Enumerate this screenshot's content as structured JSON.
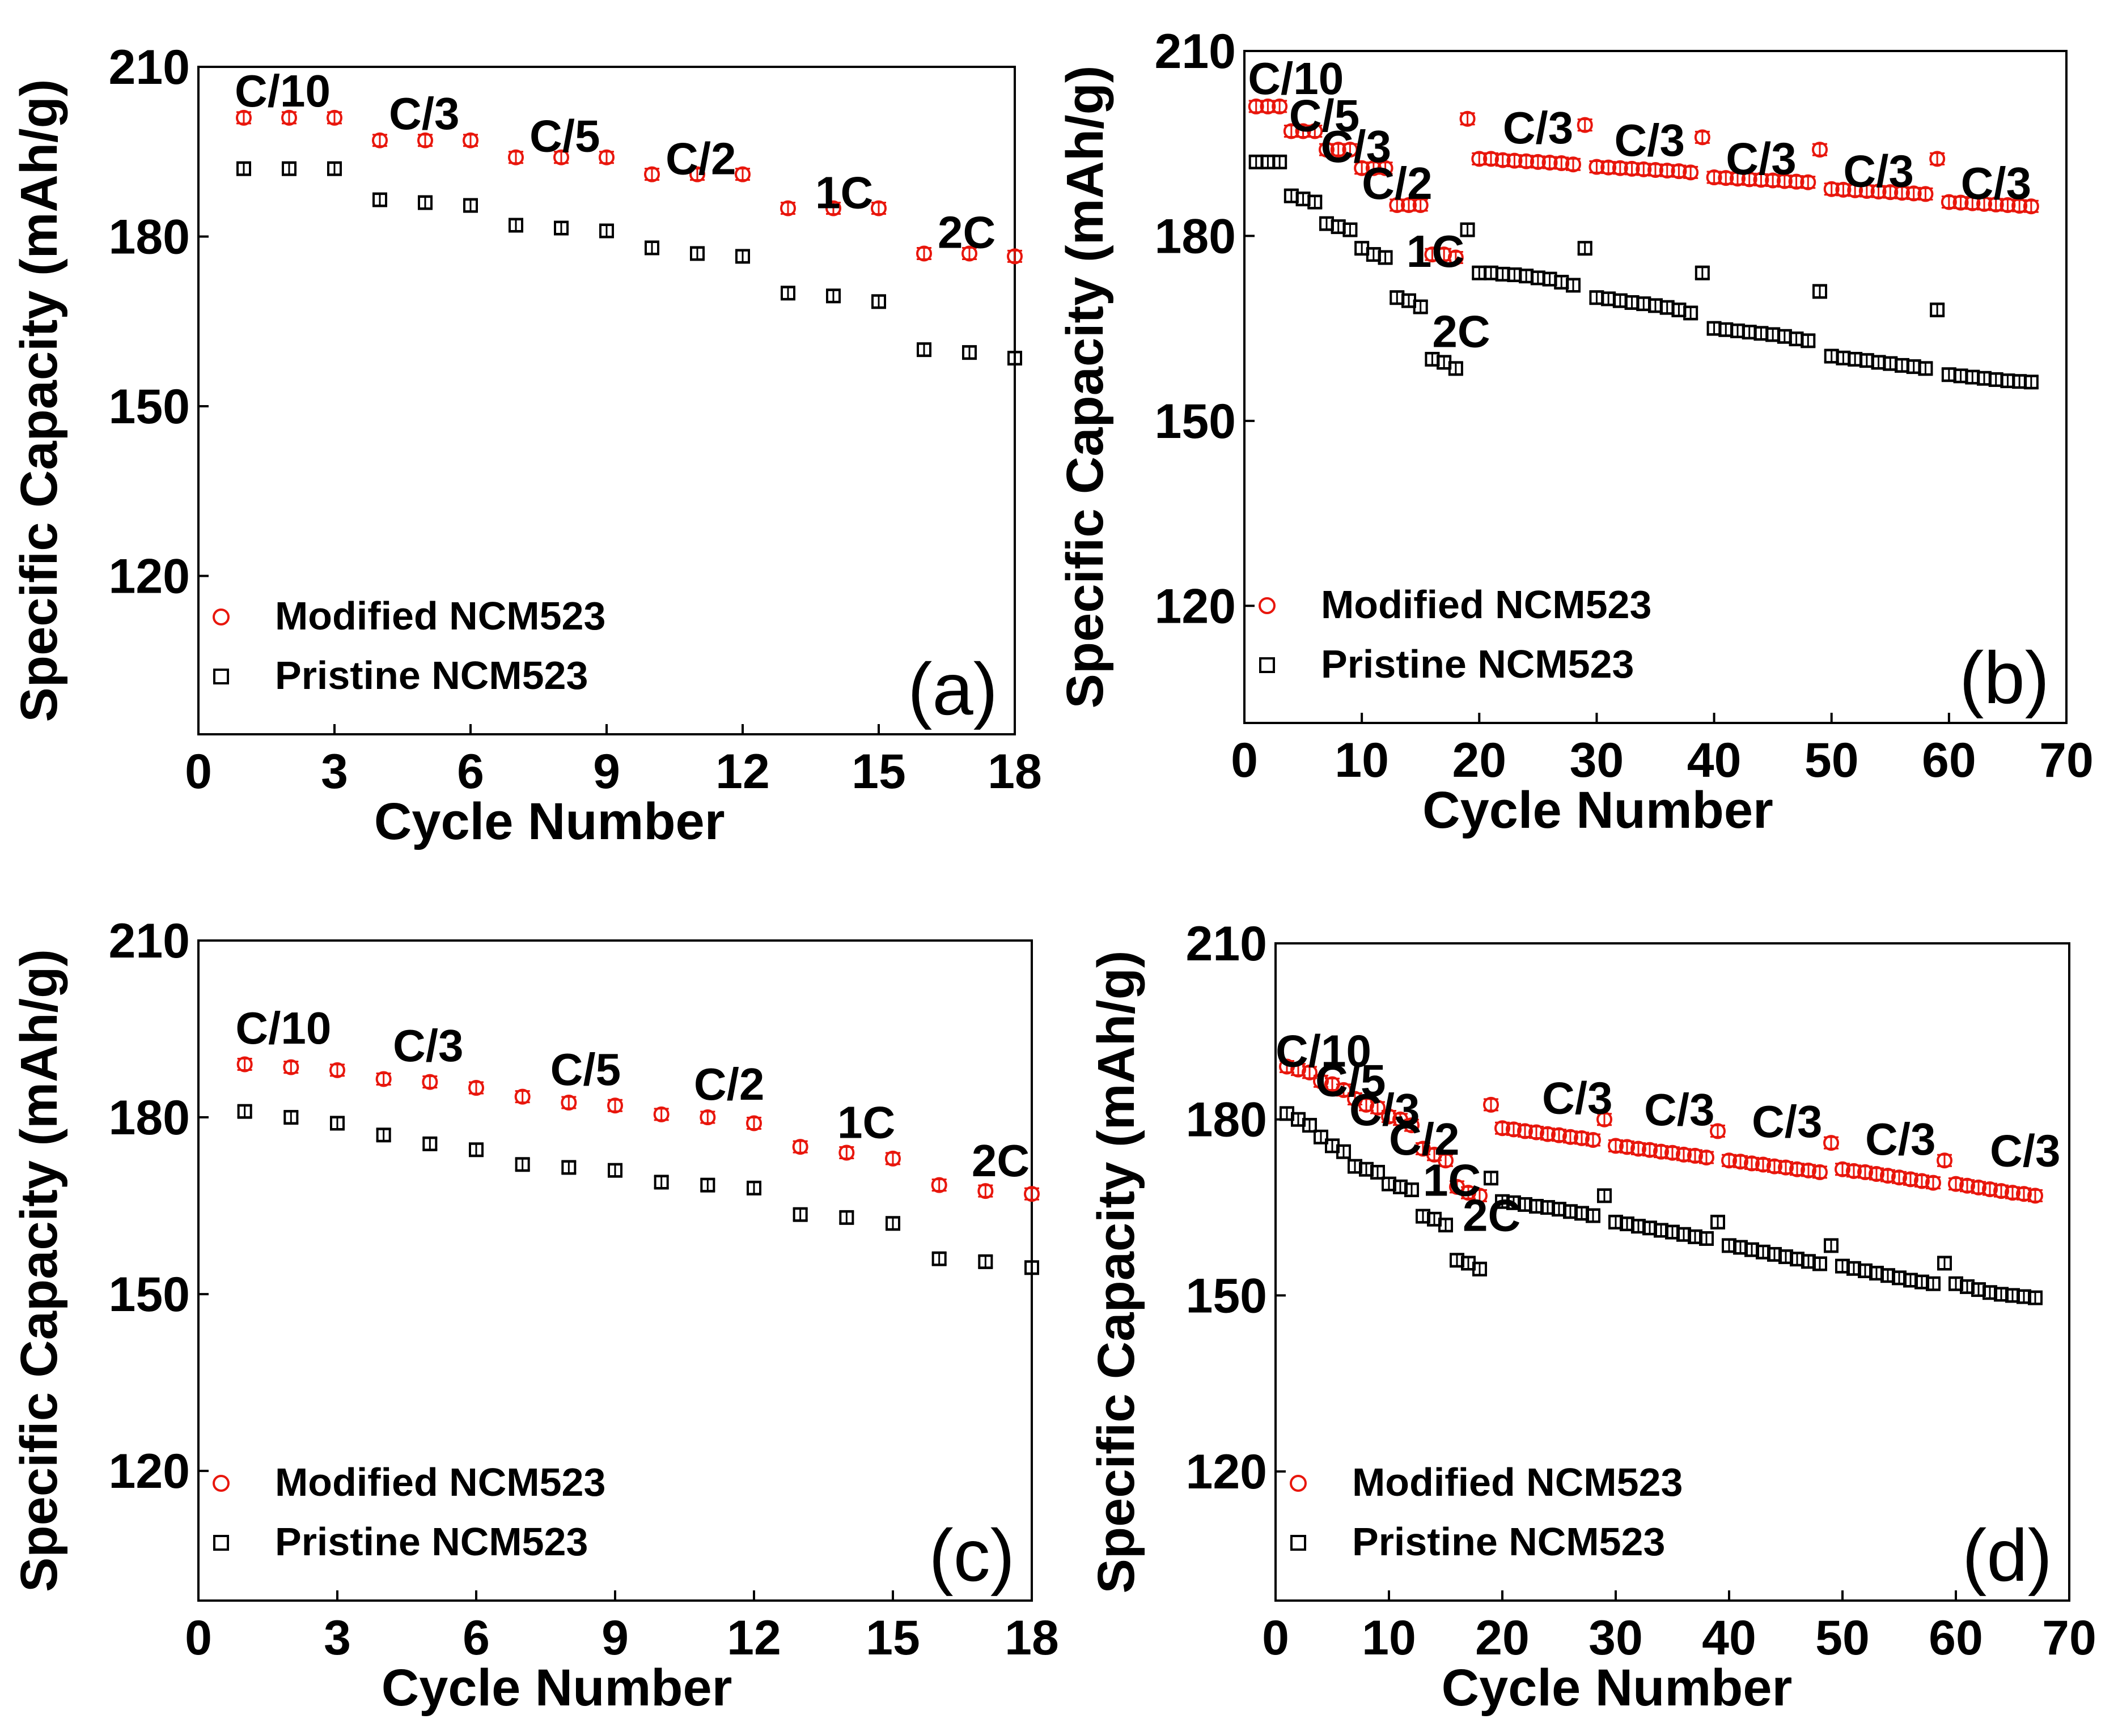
{
  "colors": {
    "modified": "#e8160c",
    "pristine": "#000000",
    "axis": "#000000",
    "background": "#ffffff"
  },
  "chart_data": [
    {
      "panel": "(a)",
      "type": "scatter",
      "xlabel": "Cycle Number",
      "ylabel": "Specific Capacity (mAh/g)",
      "xlim": [
        0,
        18
      ],
      "ylim": [
        92,
        210
      ],
      "xticks": [
        0,
        3,
        6,
        9,
        12,
        15,
        18
      ],
      "yticks": [
        120,
        150,
        180,
        210
      ],
      "legend": {
        "position": "bottom-left",
        "entries": [
          "Modified NCM523",
          "Pristine NCM523"
        ]
      },
      "rate_labels": [
        {
          "text": "C/10",
          "x": 0.8,
          "y": 203
        },
        {
          "text": "C/3",
          "x": 4.2,
          "y": 199
        },
        {
          "text": "C/5",
          "x": 7.3,
          "y": 195
        },
        {
          "text": "C/2",
          "x": 10.3,
          "y": 191
        },
        {
          "text": "1C",
          "x": 13.6,
          "y": 185
        },
        {
          "text": "2C",
          "x": 16.3,
          "y": 178
        }
      ],
      "series": [
        {
          "name": "Modified NCM523",
          "marker": "circle",
          "x": [
            1,
            2,
            3,
            4,
            5,
            6,
            7,
            8,
            9,
            10,
            11,
            12,
            13,
            14,
            15,
            16,
            17,
            18
          ],
          "y": [
            201,
            201,
            201,
            197,
            197,
            197,
            194,
            194,
            194,
            191,
            191,
            191,
            185,
            185,
            185,
            177,
            177,
            176.5
          ]
        },
        {
          "name": "Pristine NCM523",
          "marker": "square",
          "x": [
            1,
            2,
            3,
            4,
            5,
            6,
            7,
            8,
            9,
            10,
            11,
            12,
            13,
            14,
            15,
            16,
            17,
            18
          ],
          "y": [
            192,
            192,
            192,
            186.5,
            186,
            185.5,
            182,
            181.5,
            181,
            178,
            177,
            176.5,
            170,
            169.5,
            168.5,
            160,
            159.5,
            158.5
          ]
        }
      ]
    },
    {
      "panel": "(b)",
      "type": "scatter",
      "xlabel": "Cycle Number",
      "ylabel": "Specific Capacity (mAh/g)",
      "xlim": [
        0,
        70
      ],
      "ylim": [
        101,
        210
      ],
      "xticks": [
        0,
        10,
        20,
        30,
        40,
        50,
        60,
        70
      ],
      "yticks": [
        120,
        150,
        180,
        210
      ],
      "legend": {
        "position": "bottom-left",
        "entries": [
          "Modified NCM523",
          "Pristine NCM523"
        ]
      },
      "rate_labels": [
        {
          "text": "C/10",
          "x": 0.3,
          "y": 203
        },
        {
          "text": "C/5",
          "x": 3.8,
          "y": 197
        },
        {
          "text": "C/3",
          "x": 6.5,
          "y": 192
        },
        {
          "text": "C/2",
          "x": 10,
          "y": 186
        },
        {
          "text": "1C",
          "x": 13.8,
          "y": 175
        },
        {
          "text": "2C",
          "x": 16,
          "y": 162
        },
        {
          "text": "C/3",
          "x": 22,
          "y": 195
        },
        {
          "text": "C/3",
          "x": 31.5,
          "y": 193
        },
        {
          "text": "C/3",
          "x": 41,
          "y": 190
        },
        {
          "text": "C/3",
          "x": 51,
          "y": 188
        },
        {
          "text": "C/3",
          "x": 61,
          "y": 186
        }
      ],
      "series": [
        {
          "name": "Modified NCM523",
          "marker": "circle",
          "x": [
            1,
            2,
            3,
            4,
            5,
            6,
            7,
            8,
            9,
            10,
            11,
            12,
            13,
            14,
            15,
            16,
            17,
            18,
            19,
            20,
            21,
            22,
            23,
            24,
            25,
            26,
            27,
            28,
            29,
            30,
            31,
            32,
            33,
            34,
            35,
            36,
            37,
            38,
            39,
            40,
            41,
            42,
            43,
            44,
            45,
            46,
            47,
            48,
            49,
            50,
            51,
            52,
            53,
            54,
            55,
            56,
            57,
            58,
            59,
            60,
            61,
            62,
            63,
            64,
            65,
            66,
            67
          ],
          "y": [
            201,
            201,
            201,
            197,
            197,
            197,
            194,
            194,
            194,
            191,
            191,
            191,
            185,
            185,
            185,
            177,
            177,
            176.5,
            199,
            192.5,
            192.5,
            192.3,
            192.2,
            192.1,
            192,
            191.9,
            191.8,
            191.6,
            198,
            191.2,
            191.1,
            191,
            190.9,
            190.8,
            190.7,
            190.6,
            190.5,
            190.3,
            196,
            189.5,
            189.4,
            189.3,
            189.2,
            189.1,
            189,
            188.9,
            188.8,
            188.7,
            194,
            187.6,
            187.5,
            187.4,
            187.3,
            187.2,
            187.1,
            187,
            186.9,
            186.8,
            192.5,
            185.5,
            185.4,
            185.3,
            185.2,
            185.1,
            185,
            184.9,
            184.8
          ]
        },
        {
          "name": "Pristine NCM523",
          "marker": "square",
          "x": [
            1,
            2,
            3,
            4,
            5,
            6,
            7,
            8,
            9,
            10,
            11,
            12,
            13,
            14,
            15,
            16,
            17,
            18,
            19,
            20,
            21,
            22,
            23,
            24,
            25,
            26,
            27,
            28,
            29,
            30,
            31,
            32,
            33,
            34,
            35,
            36,
            37,
            38,
            39,
            40,
            41,
            42,
            43,
            44,
            45,
            46,
            47,
            48,
            49,
            50,
            51,
            52,
            53,
            54,
            55,
            56,
            57,
            58,
            59,
            60,
            61,
            62,
            63,
            64,
            65,
            66,
            67
          ],
          "y": [
            192,
            192,
            192,
            186.5,
            186,
            185.5,
            182,
            181.5,
            181,
            178,
            177,
            176.5,
            170,
            169.5,
            168.5,
            160,
            159.5,
            158.5,
            181,
            174,
            174,
            173.8,
            173.7,
            173.5,
            173.2,
            173,
            172.5,
            172,
            178,
            170,
            169.8,
            169.5,
            169.2,
            169,
            168.7,
            168.4,
            168,
            167.5,
            174,
            165,
            164.8,
            164.6,
            164.4,
            164.2,
            164,
            163.7,
            163.3,
            163,
            171,
            160.5,
            160.2,
            160,
            159.8,
            159.5,
            159.3,
            159,
            158.8,
            158.5,
            168,
            157.5,
            157.3,
            157.1,
            156.9,
            156.7,
            156.5,
            156.4,
            156.3
          ]
        }
      ]
    },
    {
      "panel": "(c)",
      "type": "scatter",
      "xlabel": "Cycle Number",
      "ylabel": "Specific Capacity (mAh/g)",
      "xlim": [
        0,
        18
      ],
      "ylim": [
        98,
        210
      ],
      "xticks": [
        0,
        3,
        6,
        9,
        12,
        15,
        18
      ],
      "yticks": [
        120,
        150,
        180,
        210
      ],
      "legend": {
        "position": "bottom-left",
        "entries": [
          "Modified NCM523",
          "Pristine NCM523"
        ]
      },
      "rate_labels": [
        {
          "text": "C/10",
          "x": 0.8,
          "y": 192.5
        },
        {
          "text": "C/3",
          "x": 4.2,
          "y": 189.5
        },
        {
          "text": "C/5",
          "x": 7.6,
          "y": 185.5
        },
        {
          "text": "C/2",
          "x": 10.7,
          "y": 183
        },
        {
          "text": "1C",
          "x": 13.8,
          "y": 176.5
        },
        {
          "text": "2C",
          "x": 16.7,
          "y": 170
        }
      ],
      "series": [
        {
          "name": "Modified NCM523",
          "marker": "circle",
          "x": [
            1,
            2,
            3,
            4,
            5,
            6,
            7,
            8,
            9,
            10,
            11,
            12,
            13,
            14,
            15,
            16,
            17,
            18
          ],
          "y": [
            189,
            188.5,
            188,
            186.5,
            186,
            185,
            183.5,
            182.5,
            182,
            180.5,
            180,
            179,
            175,
            174,
            173,
            168.5,
            167.5,
            167
          ]
        },
        {
          "name": "Pristine NCM523",
          "marker": "square",
          "x": [
            1,
            2,
            3,
            4,
            5,
            6,
            7,
            8,
            9,
            10,
            11,
            12,
            13,
            14,
            15,
            16,
            17,
            18
          ],
          "y": [
            181,
            180,
            179,
            177,
            175.5,
            174.5,
            172,
            171.5,
            171,
            169,
            168.5,
            168,
            163.5,
            163,
            162,
            156,
            155.5,
            154.5
          ]
        }
      ]
    },
    {
      "panel": "(d)",
      "type": "scatter",
      "xlabel": "Cycle Number",
      "ylabel": "Specific Capacity (mAh/g)",
      "xlim": [
        0,
        70
      ],
      "ylim": [
        98,
        210
      ],
      "xticks": [
        0,
        10,
        20,
        30,
        40,
        50,
        60,
        70
      ],
      "yticks": [
        120,
        150,
        180,
        210
      ],
      "legend": {
        "position": "bottom-left",
        "entries": [
          "Modified NCM523",
          "Pristine NCM523"
        ]
      },
      "rate_labels": [
        {
          "text": "C/10",
          "x": 0,
          "y": 189
        },
        {
          "text": "C/5",
          "x": 3.5,
          "y": 184
        },
        {
          "text": "C/3",
          "x": 6.5,
          "y": 179
        },
        {
          "text": "C/2",
          "x": 10,
          "y": 174
        },
        {
          "text": "1C",
          "x": 13,
          "y": 167
        },
        {
          "text": "2C",
          "x": 16.5,
          "y": 161
        },
        {
          "text": "C/3",
          "x": 23.5,
          "y": 181
        },
        {
          "text": "C/3",
          "x": 32.5,
          "y": 179
        },
        {
          "text": "C/3",
          "x": 42,
          "y": 177
        },
        {
          "text": "C/3",
          "x": 52,
          "y": 174
        },
        {
          "text": "C/3",
          "x": 63,
          "y": 172
        }
      ],
      "series": [
        {
          "name": "Modified NCM523",
          "marker": "circle",
          "x": [
            1,
            2,
            3,
            4,
            5,
            6,
            7,
            8,
            9,
            10,
            11,
            12,
            13,
            14,
            15,
            16,
            17,
            18,
            19,
            20,
            21,
            22,
            23,
            24,
            25,
            26,
            27,
            28,
            29,
            30,
            31,
            32,
            33,
            34,
            35,
            36,
            37,
            38,
            39,
            40,
            41,
            42,
            43,
            44,
            45,
            46,
            47,
            48,
            49,
            50,
            51,
            52,
            53,
            54,
            55,
            56,
            57,
            58,
            59,
            60,
            61,
            62,
            63,
            64,
            65,
            66,
            67
          ],
          "y": [
            189,
            188.5,
            188,
            186.5,
            186,
            185,
            183.5,
            182.5,
            182,
            180.5,
            180,
            179,
            175,
            174,
            173,
            168.5,
            167.5,
            167,
            182.5,
            178.5,
            178.3,
            178,
            177.8,
            177.5,
            177.3,
            177,
            176.8,
            176.5,
            180,
            175.5,
            175.3,
            175,
            174.8,
            174.5,
            174.3,
            174,
            173.8,
            173.5,
            178,
            173,
            172.8,
            172.5,
            172.3,
            172,
            171.8,
            171.5,
            171.3,
            171,
            176,
            171.5,
            171.2,
            171,
            170.7,
            170.4,
            170.1,
            169.8,
            169.5,
            169.2,
            173,
            169,
            168.7,
            168.4,
            168.1,
            167.8,
            167.5,
            167.3,
            167
          ]
        },
        {
          "name": "Pristine NCM523",
          "marker": "square",
          "x": [
            1,
            2,
            3,
            4,
            5,
            6,
            7,
            8,
            9,
            10,
            11,
            12,
            13,
            14,
            15,
            16,
            17,
            18,
            19,
            20,
            21,
            22,
            23,
            24,
            25,
            26,
            27,
            28,
            29,
            30,
            31,
            32,
            33,
            34,
            35,
            36,
            37,
            38,
            39,
            40,
            41,
            42,
            43,
            44,
            45,
            46,
            47,
            48,
            49,
            50,
            51,
            52,
            53,
            54,
            55,
            56,
            57,
            58,
            59,
            60,
            61,
            62,
            63,
            64,
            65,
            66,
            67
          ],
          "y": [
            181,
            180,
            179,
            177,
            175.5,
            174.5,
            172,
            171.5,
            171,
            169,
            168.5,
            168,
            163.5,
            163,
            162,
            156,
            155.5,
            154.5,
            170,
            166,
            165.8,
            165.5,
            165.2,
            165,
            164.7,
            164.3,
            164,
            163.6,
            167,
            162.5,
            162.2,
            161.8,
            161.5,
            161.1,
            160.8,
            160.4,
            160,
            159.7,
            162.5,
            158.5,
            158.2,
            157.8,
            157.4,
            157,
            156.6,
            156.2,
            155.8,
            155.4,
            158.5,
            155,
            154.6,
            154.2,
            153.8,
            153.4,
            153,
            152.6,
            152.3,
            152,
            155.5,
            152,
            151.5,
            151,
            150.5,
            150.2,
            150,
            149.8,
            149.6
          ]
        }
      ]
    }
  ]
}
